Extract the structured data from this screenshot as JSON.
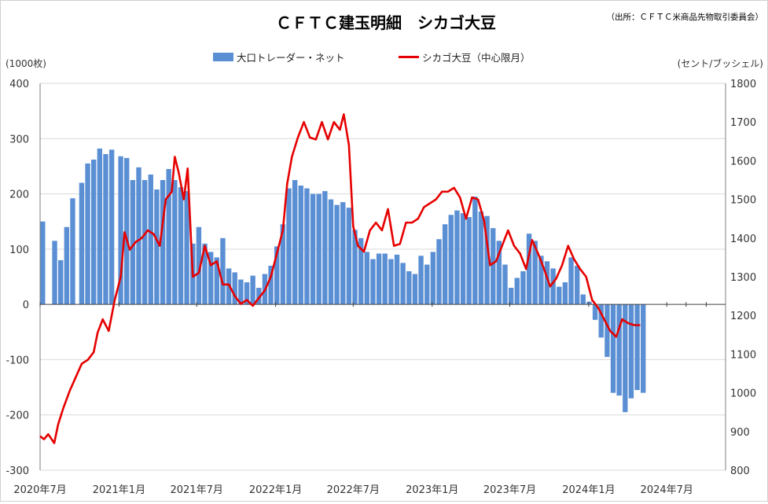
{
  "chart_data": {
    "type": "bar+line",
    "title": "ＣＦＴＣ建玉明細　シカゴ大豆",
    "source": "（出所：ＣＦＴＣ米商品先物取引委員会）",
    "y_left_label": "(1000枚)",
    "y_right_label": "(セント/ブッシェル)",
    "y_left_range": [
      -300,
      400
    ],
    "y_right_range": [
      800,
      1800
    ],
    "y_left_ticks": [
      "400",
      "300",
      "200",
      "100",
      "0",
      "-100",
      "-200",
      "-300"
    ],
    "y_right_ticks": [
      "1800",
      "1700",
      "1600",
      "1500",
      "1400",
      "1300",
      "1200",
      "1100",
      "1000",
      "900",
      "800"
    ],
    "x_tick_labels": [
      "2020年7月",
      "2021年1月",
      "2021年7月",
      "2022年1月",
      "2022年7月",
      "2023年1月",
      "2023年7月",
      "2024年1月",
      "2024年7月"
    ],
    "x_range": [
      "2020-07-01",
      "2024-11-15"
    ],
    "grid": "horizontal",
    "legend_position": "top-center",
    "series": [
      {
        "name": "大口トレーダー・ネット",
        "type": "bar",
        "axis": "left",
        "color": "#5b8fd4",
        "points": [
          [
            "2020-07-07",
            150
          ],
          [
            "2020-08-04",
            115
          ],
          [
            "2020-08-18",
            80
          ],
          [
            "2020-09-01",
            140
          ],
          [
            "2020-09-15",
            192
          ],
          [
            "2020-10-06",
            220
          ],
          [
            "2020-10-20",
            255
          ],
          [
            "2020-11-03",
            262
          ],
          [
            "2020-11-17",
            282
          ],
          [
            "2020-12-01",
            272
          ],
          [
            "2020-12-15",
            280
          ],
          [
            "2021-01-05",
            268
          ],
          [
            "2021-01-19",
            265
          ],
          [
            "2021-02-02",
            225
          ],
          [
            "2021-02-16",
            248
          ],
          [
            "2021-03-02",
            225
          ],
          [
            "2021-03-16",
            235
          ],
          [
            "2021-03-30",
            208
          ],
          [
            "2021-04-13",
            225
          ],
          [
            "2021-04-27",
            245
          ],
          [
            "2021-05-11",
            225
          ],
          [
            "2021-05-25",
            212
          ],
          [
            "2021-06-08",
            205
          ],
          [
            "2021-06-22",
            110
          ],
          [
            "2021-07-06",
            140
          ],
          [
            "2021-07-20",
            110
          ],
          [
            "2021-08-03",
            95
          ],
          [
            "2021-08-17",
            85
          ],
          [
            "2021-08-31",
            120
          ],
          [
            "2021-09-14",
            65
          ],
          [
            "2021-09-28",
            58
          ],
          [
            "2021-10-12",
            45
          ],
          [
            "2021-10-26",
            40
          ],
          [
            "2021-11-09",
            52
          ],
          [
            "2021-11-23",
            30
          ],
          [
            "2021-12-07",
            55
          ],
          [
            "2021-12-21",
            70
          ],
          [
            "2022-01-04",
            105
          ],
          [
            "2022-01-18",
            145
          ],
          [
            "2022-02-01",
            210
          ],
          [
            "2022-02-15",
            225
          ],
          [
            "2022-03-01",
            215
          ],
          [
            "2022-03-15",
            210
          ],
          [
            "2022-03-29",
            200
          ],
          [
            "2022-04-12",
            200
          ],
          [
            "2022-04-26",
            205
          ],
          [
            "2022-05-10",
            190
          ],
          [
            "2022-05-24",
            180
          ],
          [
            "2022-06-07",
            185
          ],
          [
            "2022-06-21",
            175
          ],
          [
            "2022-07-05",
            135
          ],
          [
            "2022-07-19",
            120
          ],
          [
            "2022-08-02",
            95
          ],
          [
            "2022-08-16",
            82
          ],
          [
            "2022-08-30",
            92
          ],
          [
            "2022-09-13",
            92
          ],
          [
            "2022-09-27",
            82
          ],
          [
            "2022-10-11",
            90
          ],
          [
            "2022-10-25",
            75
          ],
          [
            "2022-11-08",
            60
          ],
          [
            "2022-11-22",
            55
          ],
          [
            "2022-12-06",
            88
          ],
          [
            "2022-12-20",
            72
          ],
          [
            "2023-01-03",
            95
          ],
          [
            "2023-01-17",
            118
          ],
          [
            "2023-01-31",
            145
          ],
          [
            "2023-02-14",
            162
          ],
          [
            "2023-02-28",
            170
          ],
          [
            "2023-03-14",
            165
          ],
          [
            "2023-03-28",
            158
          ],
          [
            "2023-04-11",
            195
          ],
          [
            "2023-04-25",
            168
          ],
          [
            "2023-05-09",
            160
          ],
          [
            "2023-05-23",
            138
          ],
          [
            "2023-06-06",
            115
          ],
          [
            "2023-06-20",
            72
          ],
          [
            "2023-07-04",
            30
          ],
          [
            "2023-07-18",
            48
          ],
          [
            "2023-08-01",
            60
          ],
          [
            "2023-08-15",
            128
          ],
          [
            "2023-08-29",
            115
          ],
          [
            "2023-09-12",
            88
          ],
          [
            "2023-09-26",
            78
          ],
          [
            "2023-10-10",
            65
          ],
          [
            "2023-10-24",
            32
          ],
          [
            "2023-11-07",
            40
          ],
          [
            "2023-11-21",
            85
          ],
          [
            "2023-12-05",
            70
          ],
          [
            "2023-12-19",
            18
          ],
          [
            "2024-01-02",
            5
          ],
          [
            "2024-01-16",
            -28
          ],
          [
            "2024-01-30",
            -60
          ],
          [
            "2024-02-13",
            -95
          ],
          [
            "2024-02-27",
            -160
          ],
          [
            "2024-03-12",
            -165
          ],
          [
            "2024-03-26",
            -195
          ],
          [
            "2024-04-09",
            -170
          ],
          [
            "2024-04-23",
            -155
          ],
          [
            "2024-05-07",
            -160
          ]
        ]
      },
      {
        "name": "シカゴ大豆（中心限月）",
        "type": "line",
        "axis": "right",
        "color": "#e60000",
        "points": [
          [
            "2020-07-01",
            888
          ],
          [
            "2020-07-10",
            880
          ],
          [
            "2020-07-20",
            893
          ],
          [
            "2020-08-03",
            870
          ],
          [
            "2020-08-12",
            918
          ],
          [
            "2020-08-24",
            960
          ],
          [
            "2020-09-08",
            1005
          ],
          [
            "2020-09-22",
            1040
          ],
          [
            "2020-10-06",
            1075
          ],
          [
            "2020-10-20",
            1085
          ],
          [
            "2020-11-03",
            1105
          ],
          [
            "2020-11-12",
            1155
          ],
          [
            "2020-11-24",
            1190
          ],
          [
            "2020-12-08",
            1160
          ],
          [
            "2020-12-22",
            1240
          ],
          [
            "2021-01-05",
            1300
          ],
          [
            "2021-01-14",
            1415
          ],
          [
            "2021-01-26",
            1370
          ],
          [
            "2021-02-09",
            1390
          ],
          [
            "2021-02-23",
            1400
          ],
          [
            "2021-03-09",
            1420
          ],
          [
            "2021-03-23",
            1410
          ],
          [
            "2021-04-06",
            1380
          ],
          [
            "2021-04-20",
            1500
          ],
          [
            "2021-05-04",
            1520
          ],
          [
            "2021-05-11",
            1610
          ],
          [
            "2021-05-20",
            1570
          ],
          [
            "2021-06-01",
            1500
          ],
          [
            "2021-06-10",
            1580
          ],
          [
            "2021-06-22",
            1300
          ],
          [
            "2021-07-06",
            1310
          ],
          [
            "2021-07-20",
            1380
          ],
          [
            "2021-08-03",
            1330
          ],
          [
            "2021-08-17",
            1340
          ],
          [
            "2021-08-31",
            1280
          ],
          [
            "2021-09-14",
            1280
          ],
          [
            "2021-09-28",
            1250
          ],
          [
            "2021-10-12",
            1230
          ],
          [
            "2021-10-26",
            1240
          ],
          [
            "2021-11-09",
            1225
          ],
          [
            "2021-11-23",
            1245
          ],
          [
            "2021-12-07",
            1265
          ],
          [
            "2021-12-21",
            1300
          ],
          [
            "2022-01-04",
            1360
          ],
          [
            "2022-01-18",
            1420
          ],
          [
            "2022-01-28",
            1540
          ],
          [
            "2022-02-08",
            1610
          ],
          [
            "2022-02-22",
            1660
          ],
          [
            "2022-03-08",
            1700
          ],
          [
            "2022-03-22",
            1660
          ],
          [
            "2022-04-05",
            1655
          ],
          [
            "2022-04-19",
            1700
          ],
          [
            "2022-05-03",
            1655
          ],
          [
            "2022-05-17",
            1700
          ],
          [
            "2022-05-31",
            1680
          ],
          [
            "2022-06-09",
            1720
          ],
          [
            "2022-06-21",
            1640
          ],
          [
            "2022-07-01",
            1430
          ],
          [
            "2022-07-12",
            1380
          ],
          [
            "2022-07-26",
            1365
          ],
          [
            "2022-08-09",
            1420
          ],
          [
            "2022-08-23",
            1440
          ],
          [
            "2022-09-06",
            1420
          ],
          [
            "2022-09-20",
            1475
          ],
          [
            "2022-10-04",
            1380
          ],
          [
            "2022-10-18",
            1385
          ],
          [
            "2022-11-01",
            1440
          ],
          [
            "2022-11-15",
            1440
          ],
          [
            "2022-11-29",
            1450
          ],
          [
            "2022-12-13",
            1480
          ],
          [
            "2022-12-27",
            1490
          ],
          [
            "2023-01-10",
            1500
          ],
          [
            "2023-01-24",
            1520
          ],
          [
            "2023-02-07",
            1520
          ],
          [
            "2023-02-21",
            1530
          ],
          [
            "2023-03-07",
            1505
          ],
          [
            "2023-03-21",
            1450
          ],
          [
            "2023-04-04",
            1505
          ],
          [
            "2023-04-18",
            1500
          ],
          [
            "2023-05-02",
            1445
          ],
          [
            "2023-05-16",
            1330
          ],
          [
            "2023-05-30",
            1340
          ],
          [
            "2023-06-13",
            1380
          ],
          [
            "2023-06-27",
            1420
          ],
          [
            "2023-07-11",
            1380
          ],
          [
            "2023-07-25",
            1360
          ],
          [
            "2023-08-08",
            1320
          ],
          [
            "2023-08-22",
            1395
          ],
          [
            "2023-09-05",
            1360
          ],
          [
            "2023-09-19",
            1320
          ],
          [
            "2023-10-03",
            1275
          ],
          [
            "2023-10-17",
            1295
          ],
          [
            "2023-10-31",
            1330
          ],
          [
            "2023-11-14",
            1380
          ],
          [
            "2023-11-28",
            1345
          ],
          [
            "2023-12-12",
            1320
          ],
          [
            "2023-12-26",
            1300
          ],
          [
            "2024-01-09",
            1240
          ],
          [
            "2024-01-23",
            1220
          ],
          [
            "2024-02-06",
            1190
          ],
          [
            "2024-02-20",
            1160
          ],
          [
            "2024-03-05",
            1145
          ],
          [
            "2024-03-19",
            1190
          ],
          [
            "2024-04-02",
            1180
          ],
          [
            "2024-04-16",
            1175
          ],
          [
            "2024-04-30",
            1175
          ]
        ]
      }
    ]
  }
}
